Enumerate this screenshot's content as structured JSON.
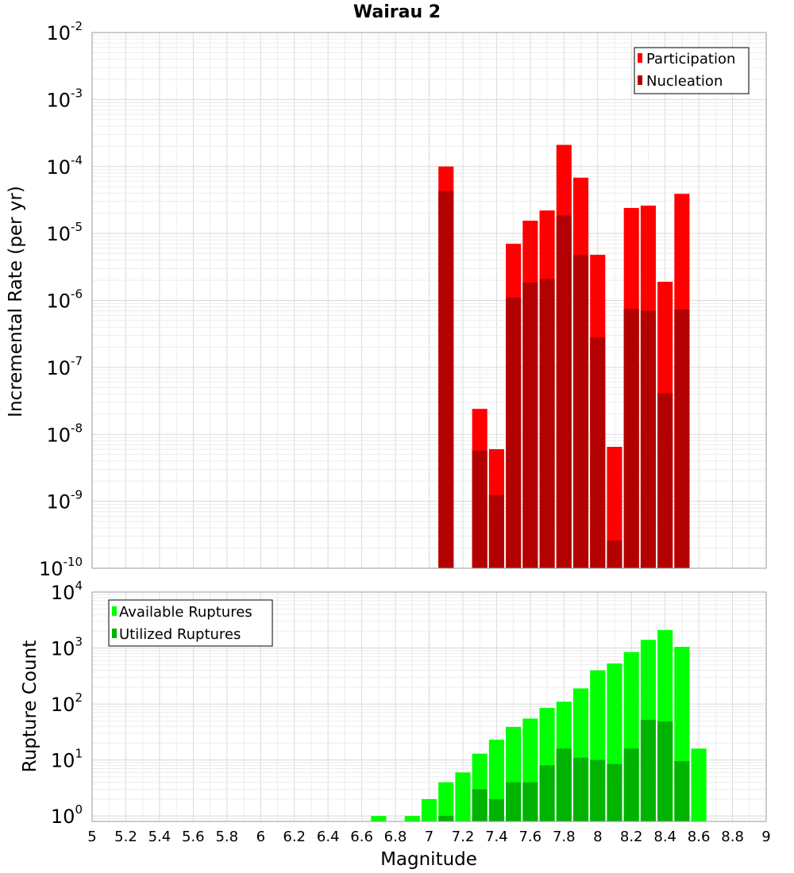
{
  "chart_data": [
    {
      "type": "bar",
      "title": "Wairau 2",
      "xlabel": "",
      "ylabel": "Incremental Rate (per yr)",
      "yscale": "log",
      "ylim": [
        1e-10,
        0.01
      ],
      "xlim": [
        5,
        9
      ],
      "y_tick_labels": [
        {
          "base": "10",
          "exp": "-10"
        },
        {
          "base": "10",
          "exp": "-9"
        },
        {
          "base": "10",
          "exp": "-8"
        },
        {
          "base": "10",
          "exp": "-7"
        },
        {
          "base": "10",
          "exp": "-6"
        },
        {
          "base": "10",
          "exp": "-5"
        },
        {
          "base": "10",
          "exp": "-4"
        },
        {
          "base": "10",
          "exp": "-3"
        },
        {
          "base": "10",
          "exp": "-2"
        }
      ],
      "grid": true,
      "legend_position": "top-right",
      "x": [
        7.1,
        7.3,
        7.4,
        7.5,
        7.6,
        7.7,
        7.8,
        7.9,
        8.0,
        8.1,
        8.2,
        8.3,
        8.4,
        8.5
      ],
      "series": [
        {
          "name": "Participation",
          "color": "#ff0000",
          "values": [
            0.0001,
            2.4e-08,
            6e-09,
            7e-06,
            1.55e-05,
            2.2e-05,
            0.00021,
            6.8e-05,
            4.8e-06,
            6.5e-09,
            2.4e-05,
            2.6e-05,
            1.9e-06,
            3.9e-05
          ]
        },
        {
          "name": "Nucleation",
          "color": "#b30000",
          "values": [
            4.3e-05,
            5.7e-09,
            1.25e-09,
            1.1e-06,
            1.85e-06,
            2.1e-06,
            1.85e-05,
            4.8e-06,
            2.8e-07,
            2.6e-10,
            7.5e-07,
            7e-07,
            4.1e-08,
            7.3e-07
          ]
        }
      ]
    },
    {
      "type": "bar",
      "title": "",
      "xlabel": "Magnitude",
      "ylabel": "Rupture Count",
      "yscale": "log",
      "ylim": [
        0.8,
        10000
      ],
      "xlim": [
        5,
        9
      ],
      "x_ticks": [
        "5",
        "5.2",
        "5.4",
        "5.6",
        "5.8",
        "6",
        "6.2",
        "6.4",
        "6.6",
        "6.8",
        "7",
        "7.2",
        "7.4",
        "7.6",
        "7.8",
        "8",
        "8.2",
        "8.4",
        "8.6",
        "8.8",
        "9"
      ],
      "y_tick_labels": [
        {
          "base": "10",
          "exp": "0"
        },
        {
          "base": "10",
          "exp": "1"
        },
        {
          "base": "10",
          "exp": "2"
        },
        {
          "base": "10",
          "exp": "3"
        },
        {
          "base": "10",
          "exp": "4"
        }
      ],
      "grid": true,
      "legend_position": "top-left",
      "x": [
        6.7,
        6.9,
        7.0,
        7.1,
        7.2,
        7.3,
        7.4,
        7.5,
        7.6,
        7.7,
        7.8,
        7.9,
        8.0,
        8.1,
        8.2,
        8.3,
        8.4,
        8.5,
        8.6
      ],
      "series": [
        {
          "name": "Available Ruptures",
          "color": "#00ff00",
          "values": [
            1,
            1,
            2,
            4,
            6,
            13,
            23,
            39,
            55,
            85,
            110,
            190,
            400,
            530,
            850,
            1400,
            2100,
            1050,
            16
          ]
        },
        {
          "name": "Utilized Ruptures",
          "color": "#00b300",
          "values": [
            0,
            0,
            0,
            1,
            0,
            3,
            2,
            4,
            4,
            8,
            16,
            11,
            10,
            8.5,
            16,
            52,
            49,
            9.5,
            0
          ]
        }
      ]
    }
  ]
}
